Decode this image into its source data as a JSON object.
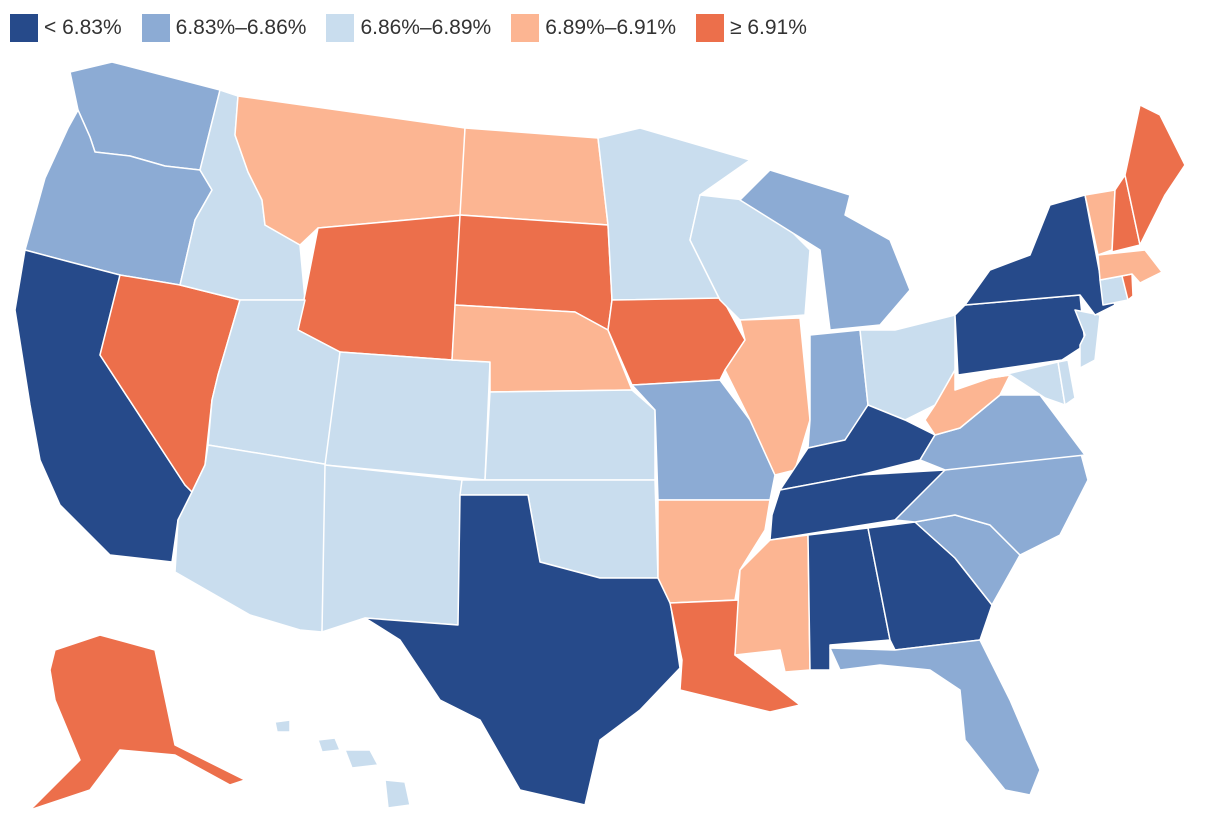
{
  "legend": {
    "bins": [
      {
        "key": "b1",
        "label": "< 6.83%",
        "color": "#264a8a"
      },
      {
        "key": "b2",
        "label": "6.83%–6.86%",
        "color": "#8cabd4"
      },
      {
        "key": "b3",
        "label": "6.86%–6.89%",
        "color": "#c9ddee"
      },
      {
        "key": "b4",
        "label": "6.89%–6.91%",
        "color": "#fcb592"
      },
      {
        "key": "b5",
        "label": "≥ 6.91%",
        "color": "#ec6f4b"
      }
    ]
  },
  "states": {
    "WA": "b2",
    "OR": "b2",
    "CA": "b1",
    "ID": "b3",
    "NV": "b5",
    "MT": "b4",
    "WY": "b5",
    "UT": "b3",
    "AZ": "b3",
    "CO": "b3",
    "NM": "b3",
    "ND": "b4",
    "SD": "b5",
    "NE": "b4",
    "KS": "b3",
    "OK": "b3",
    "TX": "b1",
    "MN": "b3",
    "IA": "b5",
    "MO": "b2",
    "AR": "b4",
    "LA": "b5",
    "WI": "b3",
    "IL": "b4",
    "MI": "b2",
    "IN": "b2",
    "OH": "b3",
    "KY": "b1",
    "TN": "b1",
    "MS": "b4",
    "AL": "b1",
    "GA": "b1",
    "FL": "b2",
    "SC": "b2",
    "NC": "b2",
    "VA": "b2",
    "WV": "b4",
    "MD": "b3",
    "DE": "b3",
    "NJ": "b3",
    "PA": "b1",
    "NY": "b1",
    "CT": "b3",
    "RI": "b5",
    "MA": "b4",
    "VT": "b4",
    "NH": "b5",
    "ME": "b5",
    "AK": "b5",
    "HI": "b3"
  }
}
